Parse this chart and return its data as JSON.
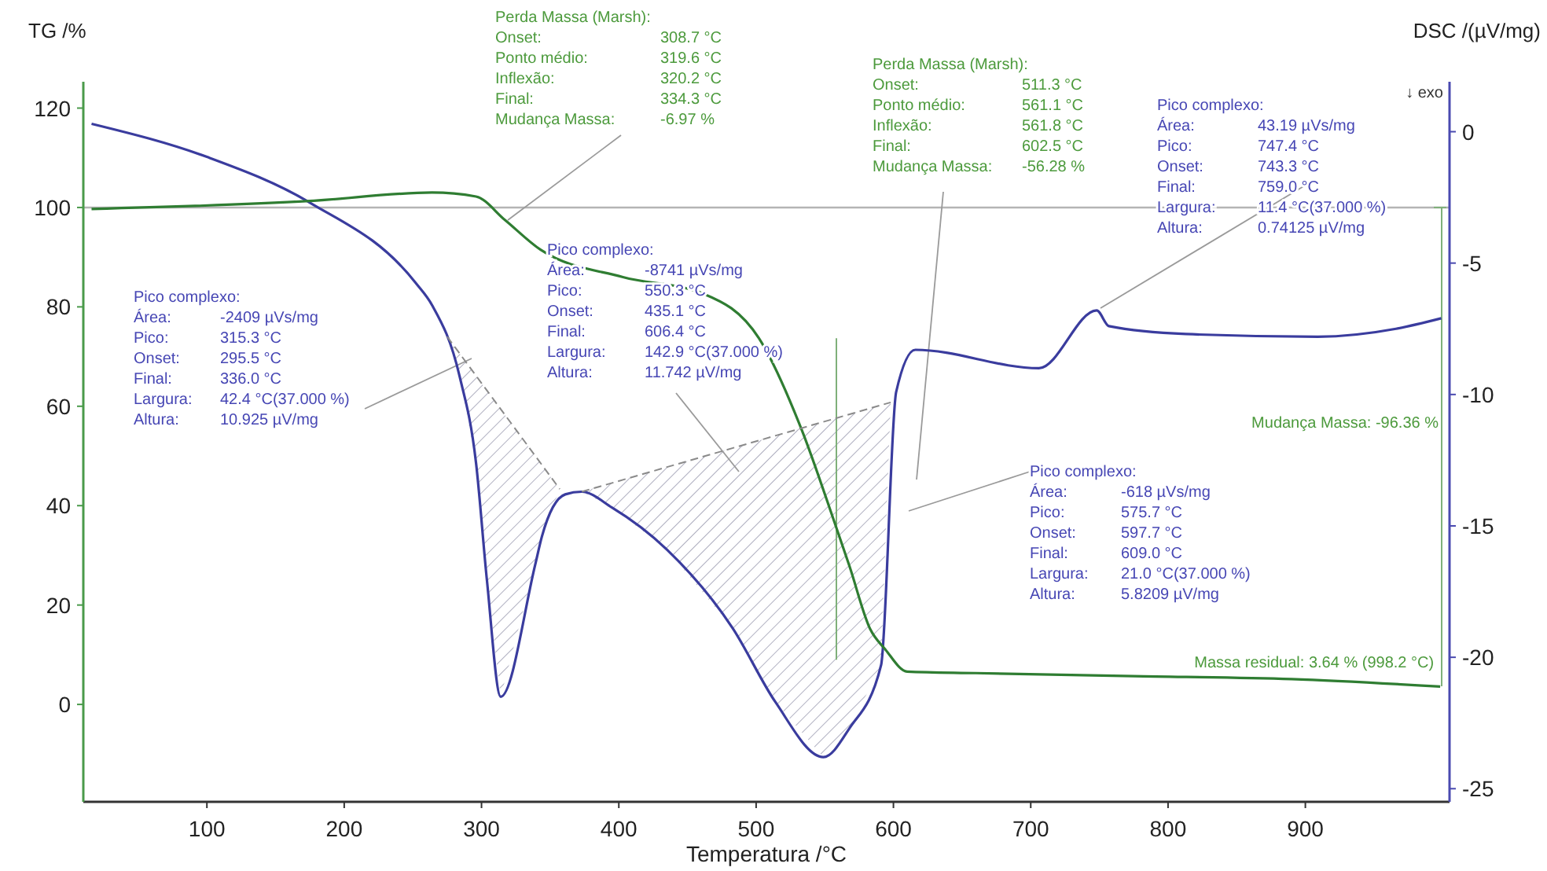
{
  "chart_data": {
    "type": "line",
    "xlabel": "Temperatura /°C",
    "ylabel": "TG /%",
    "y2label": "DSC /(µV/mg)",
    "xlim": [
      10,
      1005
    ],
    "xticks": [
      100,
      200,
      300,
      400,
      500,
      600,
      700,
      800,
      900
    ],
    "ylim": [
      -19.6,
      125.3
    ],
    "yticks": [
      0,
      20,
      40,
      60,
      80,
      100,
      120
    ],
    "y2lim": [
      -25.5,
      1.9
    ],
    "y2ticks": [
      0,
      -5,
      -10,
      -15,
      -20,
      -25
    ],
    "grid": false,
    "marker": "none",
    "ref_lines": [
      {
        "axis": "y",
        "value": 100,
        "color": "#b4b4b4"
      }
    ],
    "series": [
      {
        "axis": "y2",
        "color": "#3a3c9e",
        "line_style": "solid",
        "x": [
          16,
          100,
          175,
          252,
          264,
          284,
          296,
          304,
          314,
          339,
          344,
          361,
          373,
          395,
          435,
          483,
          514,
          549,
          568,
          591,
          602,
          616,
          706,
          748,
          757,
          813,
          909,
          966,
          999
        ],
        "values": [
          0.3,
          -0.96,
          -2.7,
          -5.75,
          -6.6,
          -9.3,
          -12.6,
          -17.1,
          -21.5,
          -16.5,
          -15.4,
          -13.8,
          -13.7,
          -14.3,
          -15.9,
          -18.9,
          -21.7,
          -23.8,
          -22.7,
          -20.3,
          -9.9,
          -8.3,
          -9.0,
          -6.8,
          -7.4,
          -7.7,
          -7.8,
          -7.5,
          -7.1
        ]
      },
      {
        "axis": "y",
        "color": "#2f7d32",
        "line_style": "solid",
        "x": [
          16,
          175,
          264,
          296,
          317,
          343,
          403,
          462,
          502,
          533,
          557,
          568,
          583,
          594,
          610,
          660,
          775,
          890,
          998.2
        ],
        "values": [
          99.7,
          101.3,
          103,
          102.2,
          97.5,
          91.5,
          86,
          82.6,
          73.7,
          55.4,
          36.7,
          27.8,
          15.2,
          11.1,
          6.6,
          6.3,
          5.7,
          5.1,
          3.6
        ]
      },
      {
        "axis": "y2",
        "color": "#8a8a8a",
        "line_style": "dashed",
        "x": [
          275,
          357
        ],
        "values": [
          -7.8,
          -13.6
        ]
      },
      {
        "axis": "y2",
        "color": "#8a8a8a",
        "line_style": "dashed",
        "x": [
          373,
          598
        ],
        "values": [
          -13.7,
          -10.3
        ]
      }
    ],
    "annotations": [
      "Perda Massa (Marsh):\nOnset:\t308.7 °C\nPonto médio:\t319.6 °C\nInflexão:\t320.2 °C\nFinal:\t334.3 °C\nMudança Massa:\t-6.97 %",
      "Perda Massa (Marsh):\nOnset:\t511.3 °C\nPonto médio:\t561.1 °C\nInflexão:\t561.8 °C\nFinal:\t602.5 °C\nMudança Massa:\t-56.28 %",
      "Pico complexo:\nÁrea:\t43.19 µVs/mg\nPico:\t747.4 °C\nOnset:\t743.3 °C\nFinal:\t759.0 °C\nLargura:\t11.4 °C(37.000 %)\nAltura:\t0.74125 µV/mg",
      "Pico complexo:\nÁrea:\t-8741 µVs/mg\nPico:\t550.3 °C\nOnset:\t435.1 °C\nFinal:\t606.4 °C\nLargura:\t142.9 °C(37.000 %)\nAltura:\t11.742 µV/mg",
      "Pico complexo:\nÁrea:\t-2409 µVs/mg\nPico:\t315.3 °C\nOnset:\t295.5 °C\nFinal:\t336.0 °C\nLargura:\t42.4 °C(37.000 %)\nAltura:\t10.925 µV/mg",
      "Pico complexo:\nÁrea:\t-618 µVs/mg\nPico:\t575.7 °C\nOnset:\t597.7 °C\nFinal:\t609.0 °C\nLargura:\t21.0 °C(37.000 %)\nAltura:\t5.8209 µV/mg",
      "Mudança Massa: -96.36 %",
      {
        "text": "Massa residual: 3.64 % (998.2 °C)",
        "x": 998.2,
        "y": 3.64
      },
      "↓ exo"
    ]
  }
}
